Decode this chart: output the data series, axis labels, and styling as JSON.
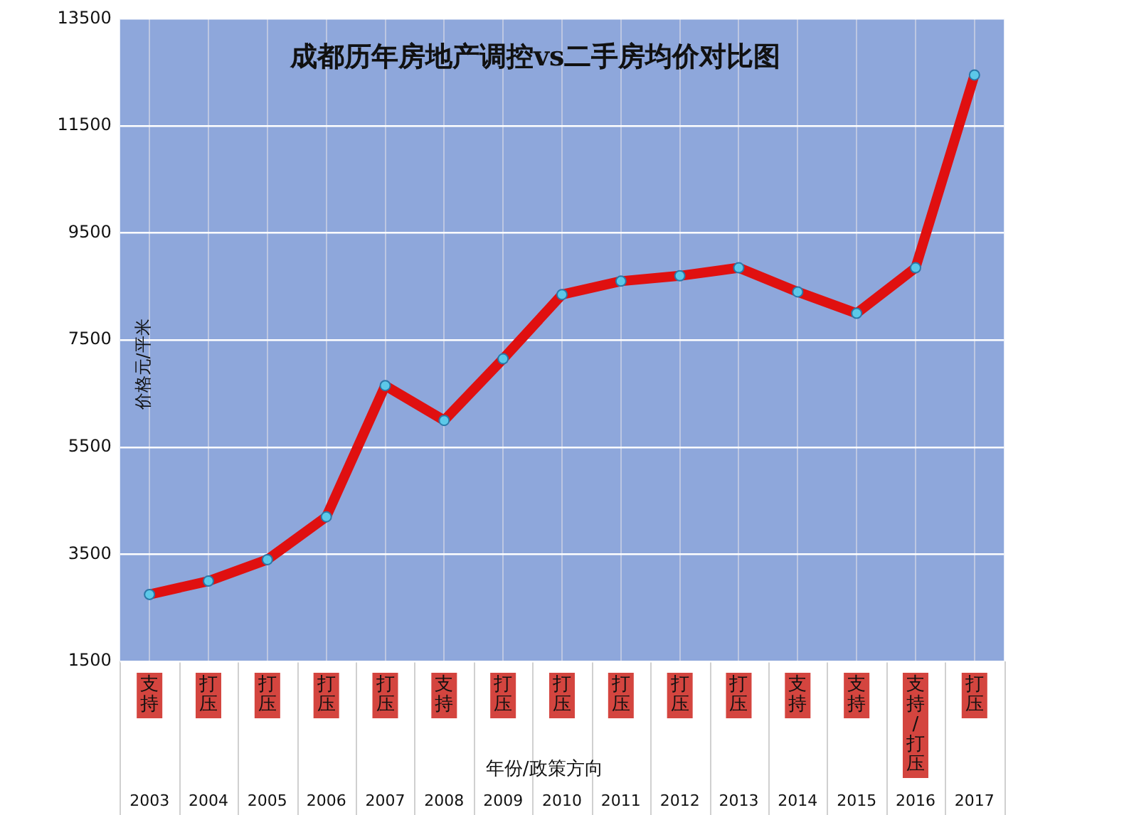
{
  "chart_data": {
    "type": "line",
    "title": "成都历年房地产调控vs二手房均价对比图",
    "xlabel": "年份/政策方向",
    "ylabel": "价格元/平米",
    "categories": [
      "2003",
      "2004",
      "2005",
      "2006",
      "2007",
      "2008",
      "2009",
      "2010",
      "2011",
      "2012",
      "2013",
      "2014",
      "2015",
      "2016",
      "2017"
    ],
    "series": [
      {
        "color": "#e01010",
        "values": [
          2750,
          3000,
          3400,
          4200,
          6650,
          6000,
          7150,
          8350,
          8600,
          8700,
          8850,
          8400,
          8000,
          8850,
          12450
        ]
      }
    ],
    "ylim": [
      1500,
      13500
    ],
    "yticks": [
      1500,
      3500,
      5500,
      7500,
      9500,
      11500,
      13500
    ],
    "grid": true,
    "legend": false,
    "marker": "circle",
    "line_style": "solid",
    "annotations": [
      "支持",
      "打压",
      "打压",
      "打压",
      "打压",
      "支持",
      "打压",
      "打压",
      "打压",
      "打压",
      "打压",
      "支持",
      "支持",
      "支持/打压",
      "打压"
    ]
  }
}
